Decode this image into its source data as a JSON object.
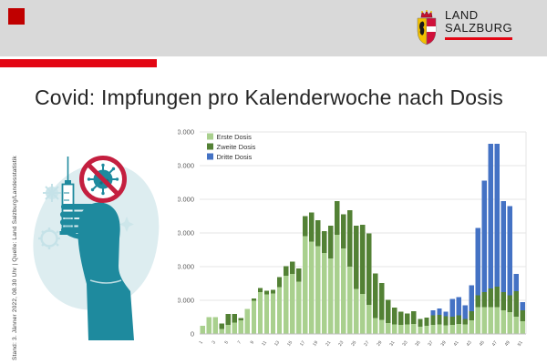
{
  "header": {
    "band_color": "#d9d9d9",
    "red_square_color": "#c00000",
    "accent_bar_color": "#e30613",
    "logo": {
      "line1": "LAND",
      "line2": "SALZBURG"
    }
  },
  "title": "Covid: Impfungen pro Kalenderwoche nach Dosis",
  "source_note": "Stand: 3. Jänner 2022, 08.30 Uhr  |  Quelle: Land Salzburg/Landesstatistik",
  "illustration": {
    "description": "Hand holding a syringe, crossed-out coronavirus sign"
  },
  "chart_data": {
    "type": "bar",
    "stacked": true,
    "title": "",
    "xlabel": "",
    "ylabel": "",
    "grid": true,
    "legend_position": "top-left",
    "x_label_every": 2,
    "x": [
      1,
      2,
      3,
      4,
      5,
      6,
      7,
      8,
      9,
      10,
      11,
      12,
      13,
      14,
      15,
      16,
      17,
      18,
      19,
      20,
      21,
      22,
      23,
      24,
      25,
      26,
      27,
      28,
      29,
      30,
      31,
      32,
      33,
      34,
      35,
      36,
      37,
      38,
      39,
      40,
      41,
      42,
      43,
      44,
      45,
      46,
      47,
      48,
      49,
      50,
      51
    ],
    "ylim": [
      0,
      60000
    ],
    "y_tick_step": 10000,
    "y_ticks": [
      "0",
      "10.000",
      "20.000",
      "30.000",
      "40.000",
      "50.000",
      "60.000"
    ],
    "colors": {
      "grid": "#e6e6e6",
      "axis": "#bfbfbf",
      "tick_text": "#595959"
    },
    "series": [
      {
        "name": "Erste Dosis",
        "color": "#a9d08e",
        "values": [
          2500,
          5000,
          5000,
          1500,
          2700,
          3400,
          4000,
          7400,
          9800,
          12500,
          11700,
          12000,
          13900,
          17300,
          17900,
          15500,
          29000,
          27500,
          26100,
          24000,
          22400,
          29400,
          25400,
          20000,
          13400,
          11900,
          8600,
          4700,
          4200,
          3300,
          2800,
          2700,
          2800,
          3000,
          2100,
          2400,
          2700,
          2800,
          2600,
          2700,
          3000,
          2800,
          4000,
          8000,
          8000,
          8000,
          8000,
          7000,
          6500,
          5100,
          3800
        ]
      },
      {
        "name": "Zweite Dosis",
        "color": "#538135",
        "values": [
          0,
          0,
          0,
          1600,
          3300,
          2600,
          700,
          0,
          800,
          1100,
          1200,
          1100,
          3000,
          2900,
          3600,
          4000,
          6000,
          8600,
          7700,
          6500,
          9700,
          10100,
          10100,
          16800,
          18700,
          20500,
          21300,
          13300,
          11000,
          6900,
          5100,
          3900,
          3300,
          3700,
          2400,
          2500,
          2900,
          2900,
          2700,
          2500,
          2500,
          1700,
          2800,
          3500,
          4500,
          5500,
          6000,
          5500,
          5000,
          7600,
          3200
        ]
      },
      {
        "name": "Dritte Dosis",
        "color": "#4472c4",
        "values": [
          0,
          0,
          0,
          0,
          0,
          0,
          0,
          0,
          0,
          0,
          0,
          0,
          0,
          0,
          0,
          0,
          0,
          0,
          0,
          0,
          0,
          0,
          0,
          0,
          0,
          0,
          0,
          0,
          0,
          0,
          0,
          0,
          0,
          0,
          0,
          0,
          1400,
          1900,
          1300,
          5200,
          5500,
          4000,
          7700,
          20000,
          33000,
          43000,
          42500,
          27000,
          26500,
          5200,
          2500
        ]
      }
    ]
  }
}
